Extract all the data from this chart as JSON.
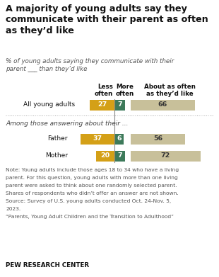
{
  "title": "A majority of young adults say they\ncommunicate with their parent as often\nas they’d like",
  "subtitle": "% of young adults saying they communicate with their\nparent ___ than they’d like",
  "col_header_left": "Less\noften",
  "col_header_mid": "More\noften",
  "col_header_right": "About as often\nas they’d like",
  "rows": [
    {
      "label": "All young adults",
      "less": 27,
      "more": 7,
      "about": 66
    },
    {
      "label": "Father",
      "less": 37,
      "more": 6,
      "about": 56
    },
    {
      "label": "Mother",
      "less": 20,
      "more": 7,
      "about": 72
    }
  ],
  "section_label": "Among those answering about their ...",
  "color_less": "#D4A017",
  "color_more": "#3D7A5A",
  "color_about": "#C8C09A",
  "note1": "Note: Young adults include those ages 18 to 34 who have a living",
  "note2": "parent. For this question, young adults with more than one living",
  "note3": "parent were asked to think about one randomly selected parent.",
  "note4": "Shares of respondents who didn’t offer an answer are not shown.",
  "note5": "Source: Survey of U.S. young adults conducted Oct. 24-Nov. 5,",
  "note6": "2023.",
  "note7": "“Parents, Young Adult Children and the Transition to Adulthood”",
  "footer": "PEW RESEARCH CENTER",
  "bg_color": "#FFFFFF"
}
